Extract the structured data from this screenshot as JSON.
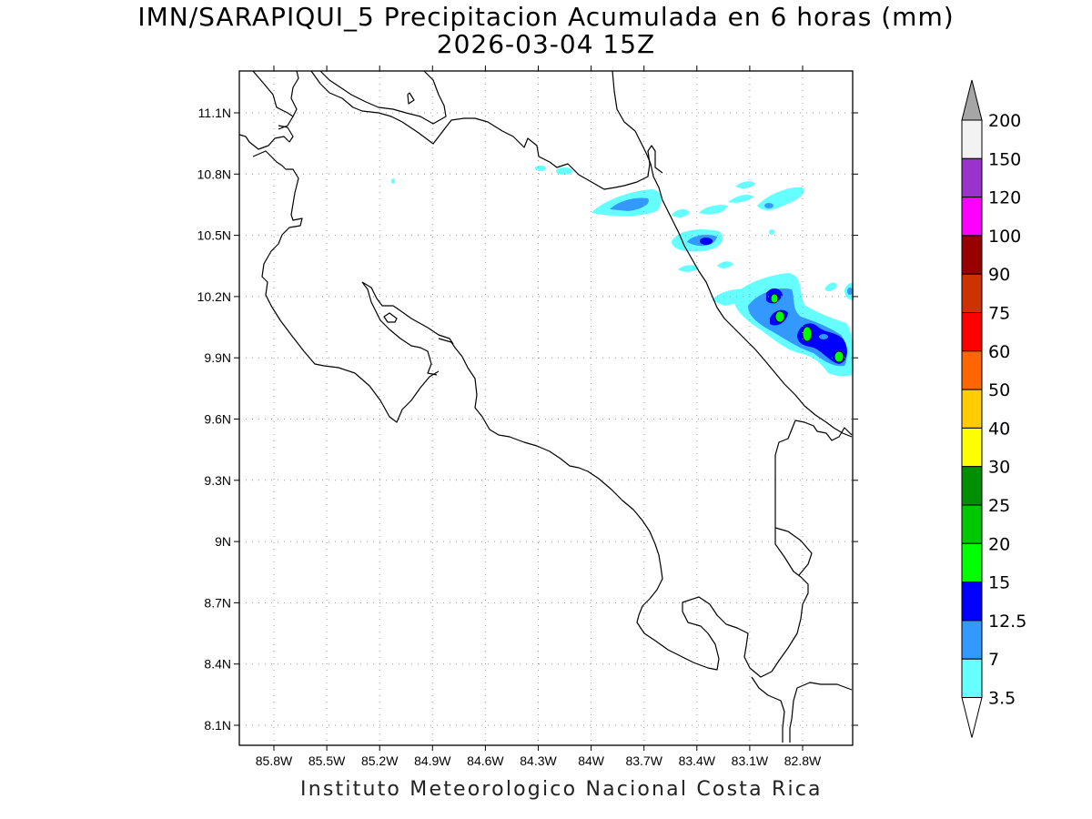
{
  "title": {
    "line1": "IMN/SARAPIQUI_5 Precipitacion Acumulada en 6 horas (mm)",
    "line2": "2026-03-04 15Z"
  },
  "footer": "Instituto Meteorologico Nacional Costa Rica",
  "map": {
    "lat_ticks": [
      "11.1N",
      "10.8N",
      "10.5N",
      "10.2N",
      "9.9N",
      "9.6N",
      "9.3N",
      "9N",
      "8.7N",
      "8.4N",
      "8.1N"
    ],
    "lon_ticks": [
      "85.8W",
      "85.5W",
      "85.2W",
      "84.9W",
      "84.6W",
      "84.3W",
      "84W",
      "83.7W",
      "83.4W",
      "83.1W",
      "82.8W"
    ],
    "grid": true
  },
  "colorbar": {
    "levels": [
      "200",
      "150",
      "120",
      "100",
      "90",
      "75",
      "60",
      "50",
      "40",
      "30",
      "25",
      "20",
      "15",
      "12.5",
      "7",
      "3.5"
    ],
    "colors": [
      "#f2f2f2",
      "#9933cc",
      "#ff00ff",
      "#990000",
      "#cc3300",
      "#ff0000",
      "#ff6600",
      "#ffcc00",
      "#ffff00",
      "#008f00",
      "#00c800",
      "#00ff00",
      "#0000ff",
      "#3399ff",
      "#66ffff"
    ],
    "top_arrow_color": "#a6a6a6",
    "bottom_arrow_color": "#ffffff"
  }
}
